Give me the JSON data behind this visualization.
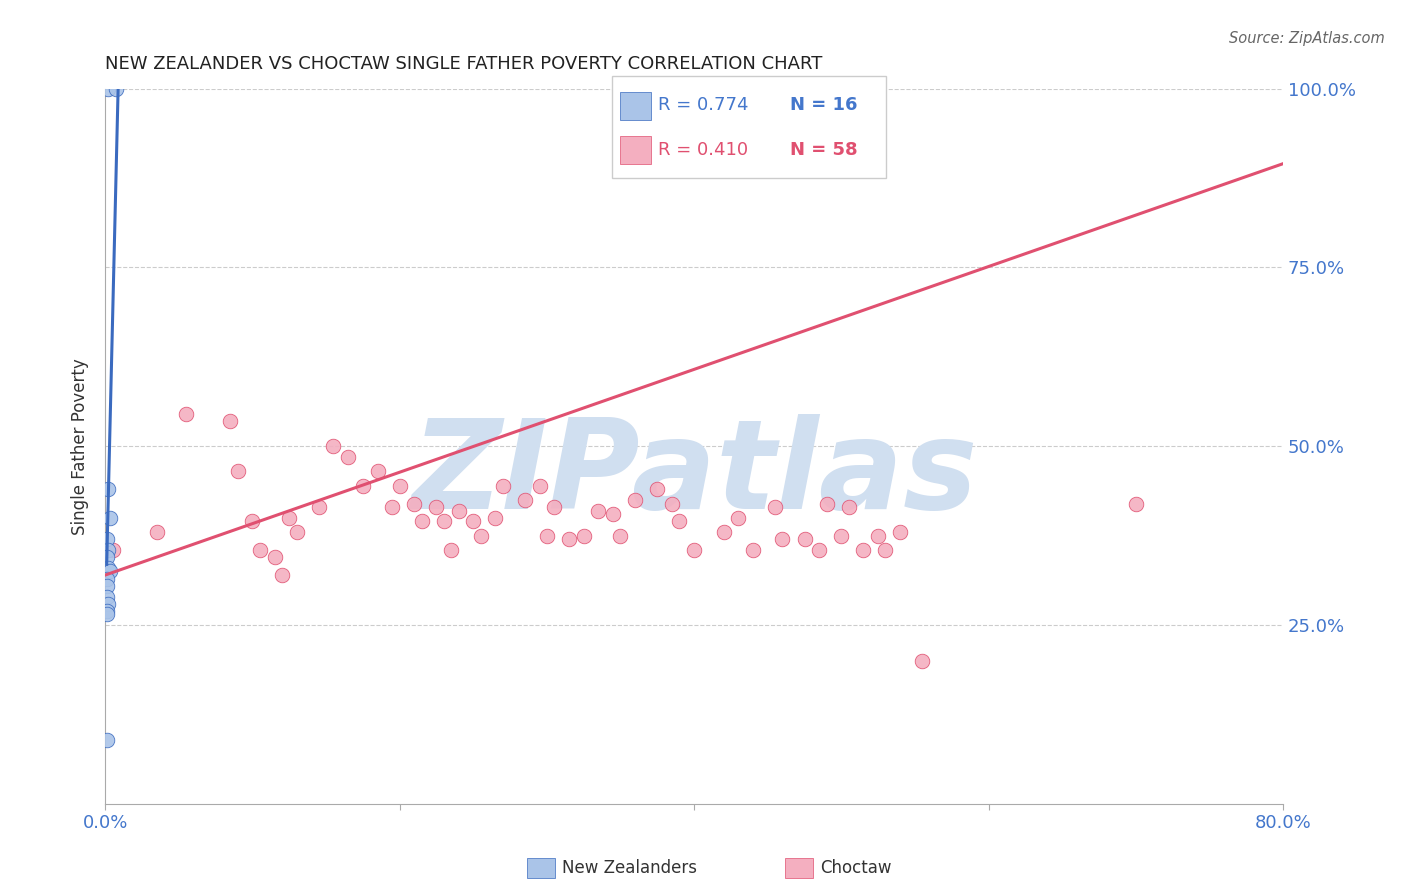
{
  "title": "NEW ZEALANDER VS CHOCTAW SINGLE FATHER POVERTY CORRELATION CHART",
  "source": "Source: ZipAtlas.com",
  "ylabel": "Single Father Poverty",
  "xlim": [
    0.0,
    0.8
  ],
  "ylim": [
    0.0,
    1.0
  ],
  "nz_color": "#aac4e8",
  "choctaw_color": "#f4afc0",
  "nz_line_color": "#3a6abf",
  "choctaw_line_color": "#e05070",
  "watermark_text": "ZIPatlas",
  "watermark_color": "#d0dff0",
  "nz_x": [
    0.002,
    0.007,
    0.002,
    0.003,
    0.001,
    0.002,
    0.001,
    0.002,
    0.003,
    0.001,
    0.001,
    0.001,
    0.002,
    0.001,
    0.001,
    0.001
  ],
  "nz_y": [
    1.0,
    1.0,
    0.44,
    0.4,
    0.37,
    0.355,
    0.345,
    0.33,
    0.325,
    0.315,
    0.305,
    0.29,
    0.28,
    0.27,
    0.265,
    0.09
  ],
  "choctaw_x": [
    0.005,
    0.035,
    0.055,
    0.085,
    0.09,
    0.1,
    0.105,
    0.115,
    0.12,
    0.125,
    0.13,
    0.145,
    0.155,
    0.165,
    0.175,
    0.185,
    0.195,
    0.2,
    0.21,
    0.215,
    0.225,
    0.23,
    0.235,
    0.24,
    0.25,
    0.255,
    0.265,
    0.27,
    0.285,
    0.295,
    0.3,
    0.305,
    0.315,
    0.325,
    0.335,
    0.345,
    0.35,
    0.36,
    0.375,
    0.385,
    0.39,
    0.4,
    0.42,
    0.43,
    0.44,
    0.455,
    0.46,
    0.475,
    0.485,
    0.49,
    0.5,
    0.505,
    0.515,
    0.525,
    0.53,
    0.54,
    0.555,
    0.7
  ],
  "choctaw_y": [
    0.355,
    0.38,
    0.545,
    0.535,
    0.465,
    0.395,
    0.355,
    0.345,
    0.32,
    0.4,
    0.38,
    0.415,
    0.5,
    0.485,
    0.445,
    0.465,
    0.415,
    0.445,
    0.42,
    0.395,
    0.415,
    0.395,
    0.355,
    0.41,
    0.395,
    0.375,
    0.4,
    0.445,
    0.425,
    0.445,
    0.375,
    0.415,
    0.37,
    0.375,
    0.41,
    0.405,
    0.375,
    0.425,
    0.44,
    0.42,
    0.395,
    0.355,
    0.38,
    0.4,
    0.355,
    0.415,
    0.37,
    0.37,
    0.355,
    0.42,
    0.375,
    0.415,
    0.355,
    0.375,
    0.355,
    0.38,
    0.2,
    0.42
  ],
  "nz_line": [
    0.001,
    0.009,
    0.335,
    1.02
  ],
  "choctaw_line": [
    0.0,
    0.8,
    0.32,
    0.895
  ]
}
